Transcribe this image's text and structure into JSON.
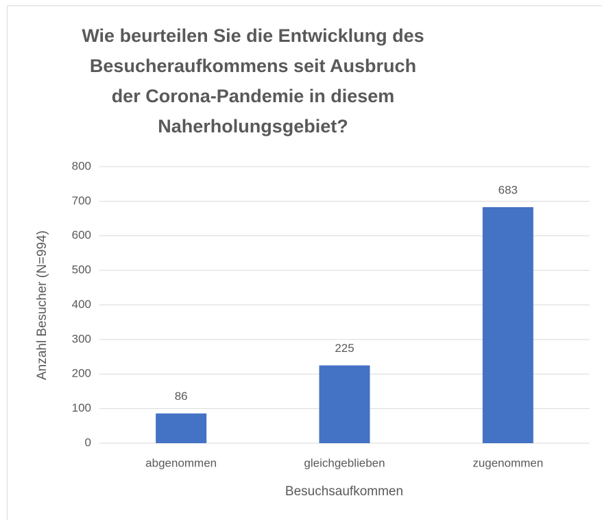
{
  "chart_data": {
    "type": "bar",
    "title": "Wie beurteilen Sie die Entwicklung des Besucheraufkommens seit Ausbruch der Corona-Pandemie in diesem Naherholungsgebiet?",
    "x_label": "Besuchsaufkommen",
    "y_label": "Anzahl Besucher (N=994)",
    "categories": [
      "abgenommen",
      "gleichgeblieben",
      "zugenommen"
    ],
    "values": [
      86,
      225,
      683
    ],
    "color": "#4472c4",
    "ylim": [
      0,
      800
    ],
    "yticks": [
      0,
      100,
      200,
      300,
      400,
      500,
      600,
      700,
      800
    ],
    "grid": true
  }
}
